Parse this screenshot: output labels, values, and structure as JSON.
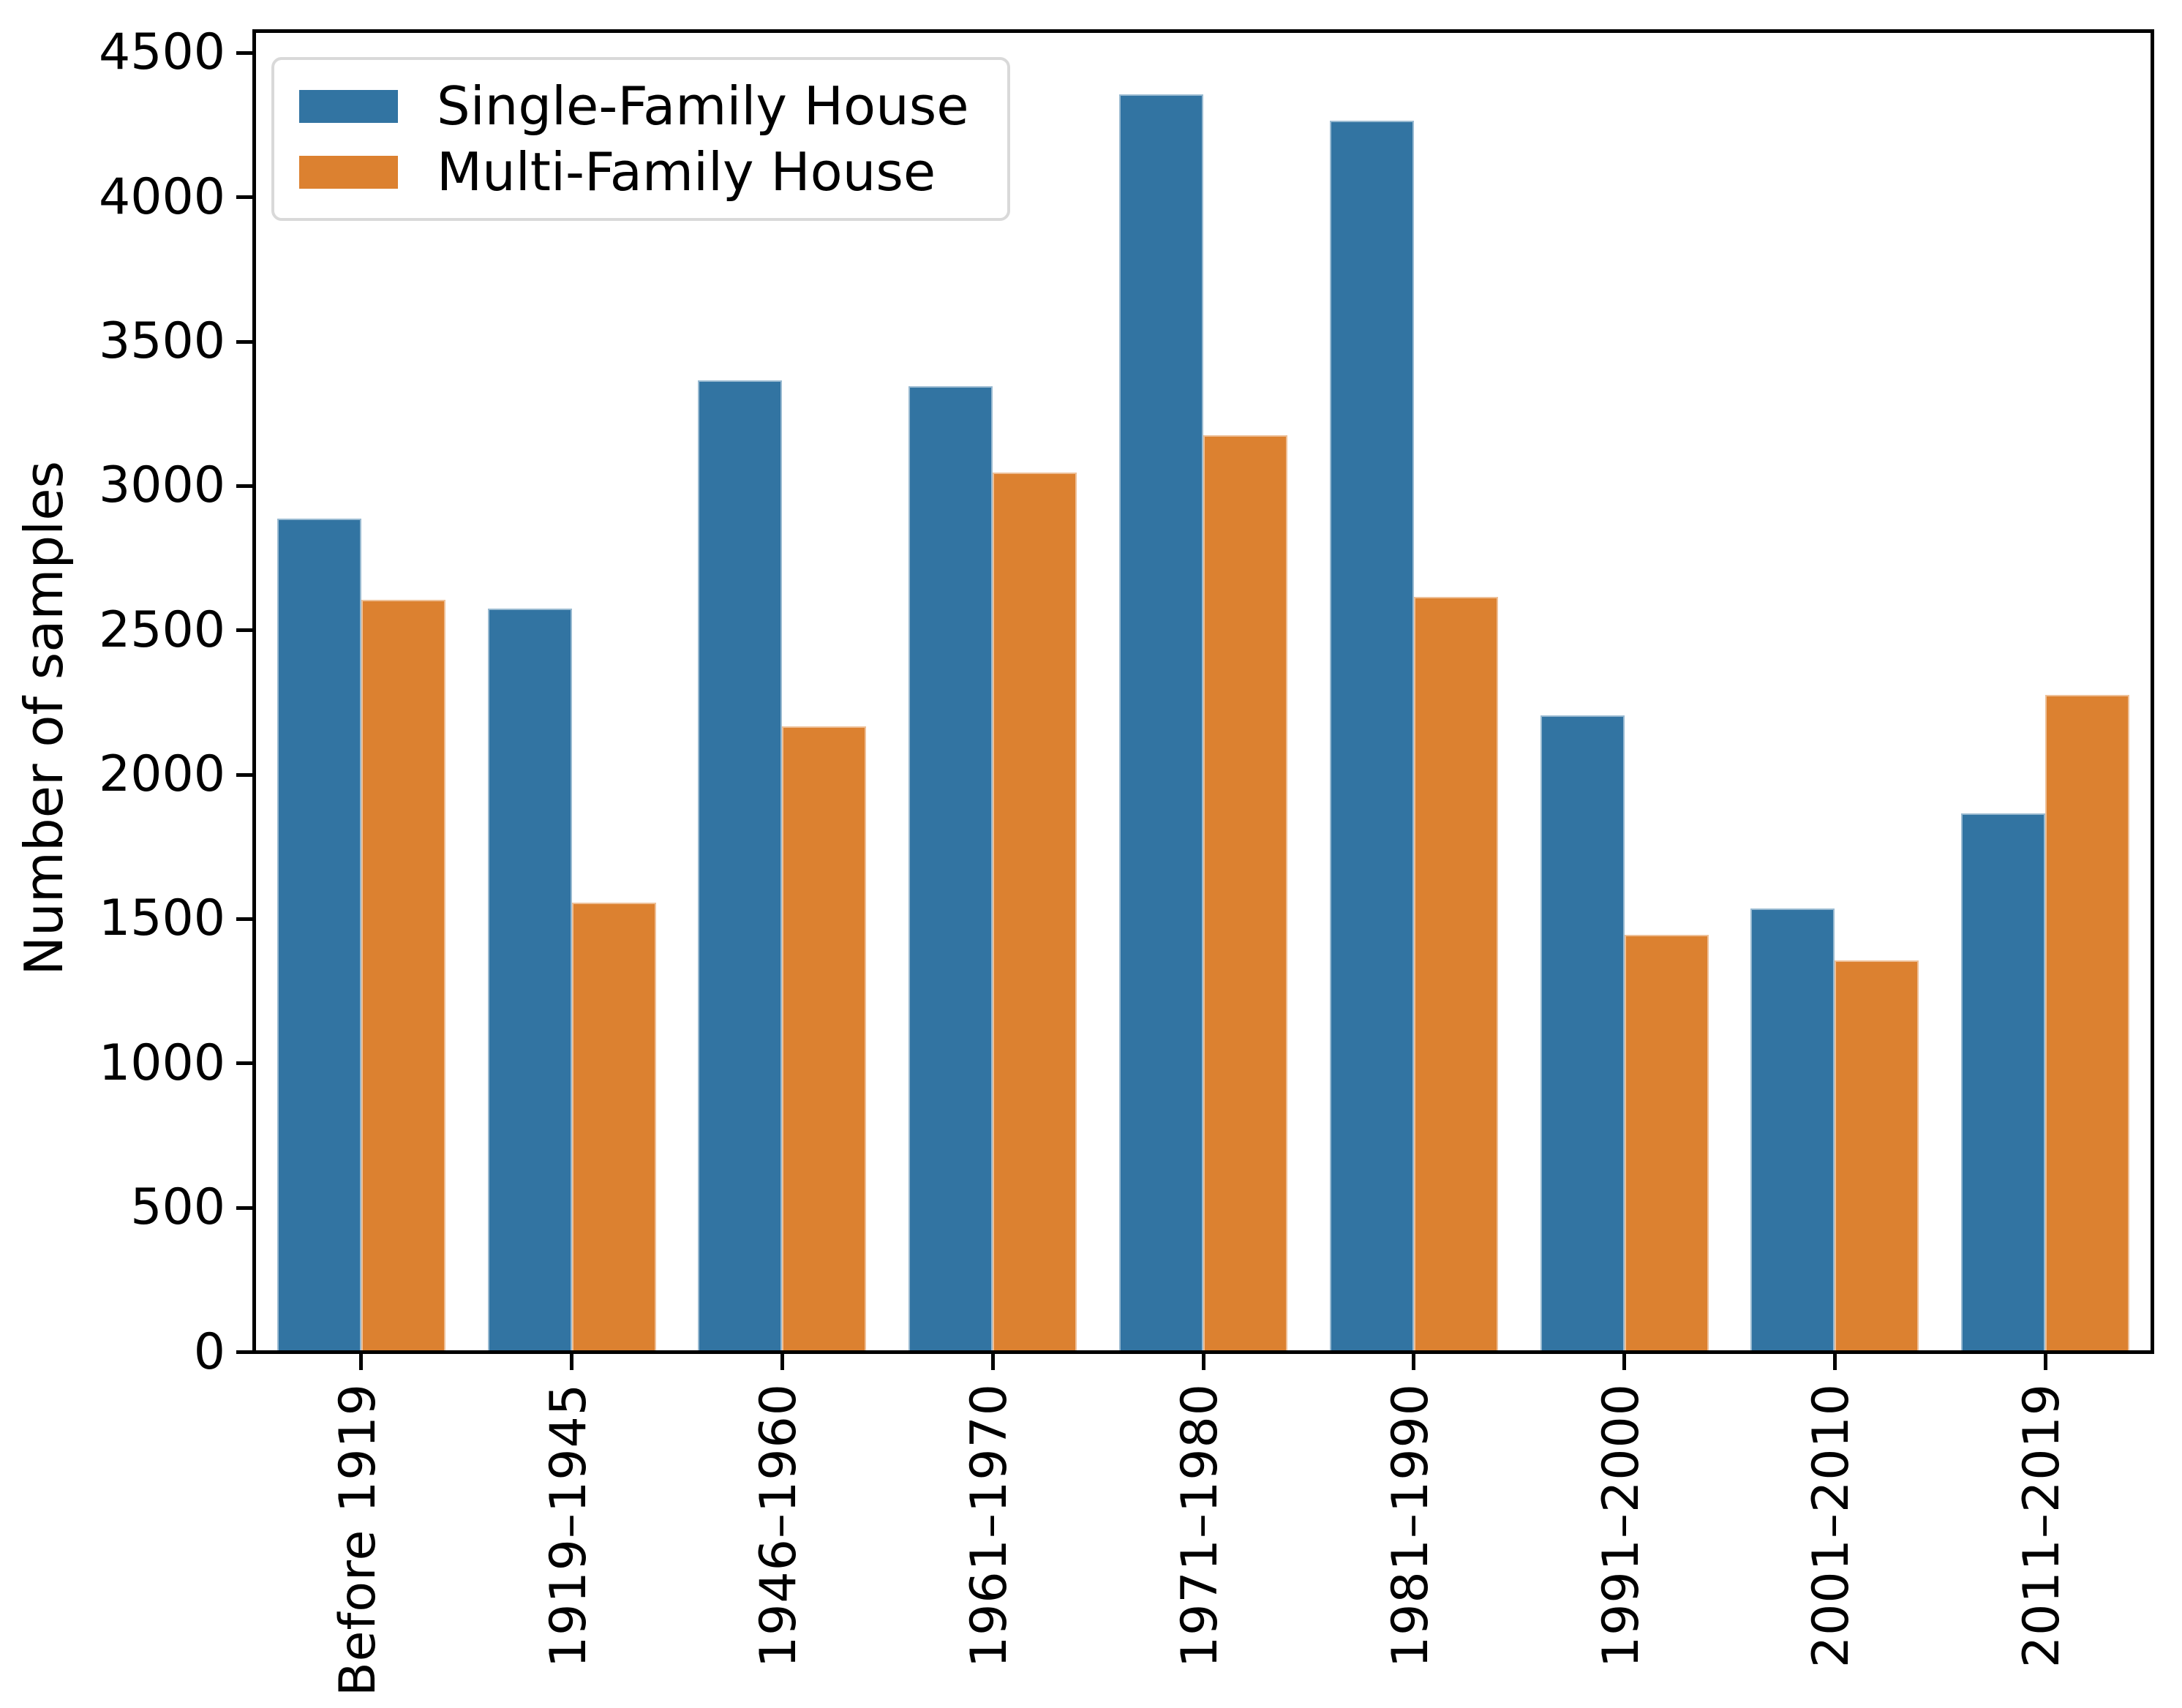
{
  "figure": {
    "background": "#ffffff"
  },
  "y_axis": {
    "label": "Number of samples",
    "tick_labels": [
      "0",
      "500",
      "1000",
      "1500",
      "2000",
      "2500",
      "3000",
      "3500",
      "4000",
      "4500"
    ]
  },
  "legend": {
    "items": [
      {
        "label": "Single-Family House",
        "color": "#3274a2"
      },
      {
        "label": "Multi-Family House",
        "color": "#dc8130"
      }
    ]
  },
  "chart_data": {
    "type": "bar",
    "categories": [
      "Before 1919",
      "1919–1945",
      "1946–1960",
      "1961–1970",
      "1971–1980",
      "1981–1990",
      "1991–2000",
      "2001–2010",
      "2011–2019"
    ],
    "series": [
      {
        "name": "Single-Family House",
        "color": "#3274a2",
        "values": [
          2880,
          2570,
          3360,
          3340,
          4350,
          4260,
          2200,
          1530,
          1860
        ]
      },
      {
        "name": "Multi-Family House",
        "color": "#dc8130",
        "values": [
          2600,
          1550,
          2160,
          3040,
          3170,
          2610,
          1440,
          1350,
          2270
        ]
      }
    ],
    "title": "",
    "xlabel": "",
    "ylabel": "Number of samples",
    "ylim": [
      0,
      4563
    ],
    "yticks": [
      0,
      500,
      1000,
      1500,
      2000,
      2500,
      3000,
      3500,
      4000,
      4500
    ],
    "grid": false,
    "legend_position": "upper left",
    "x_tick_label_rotation": 90
  }
}
